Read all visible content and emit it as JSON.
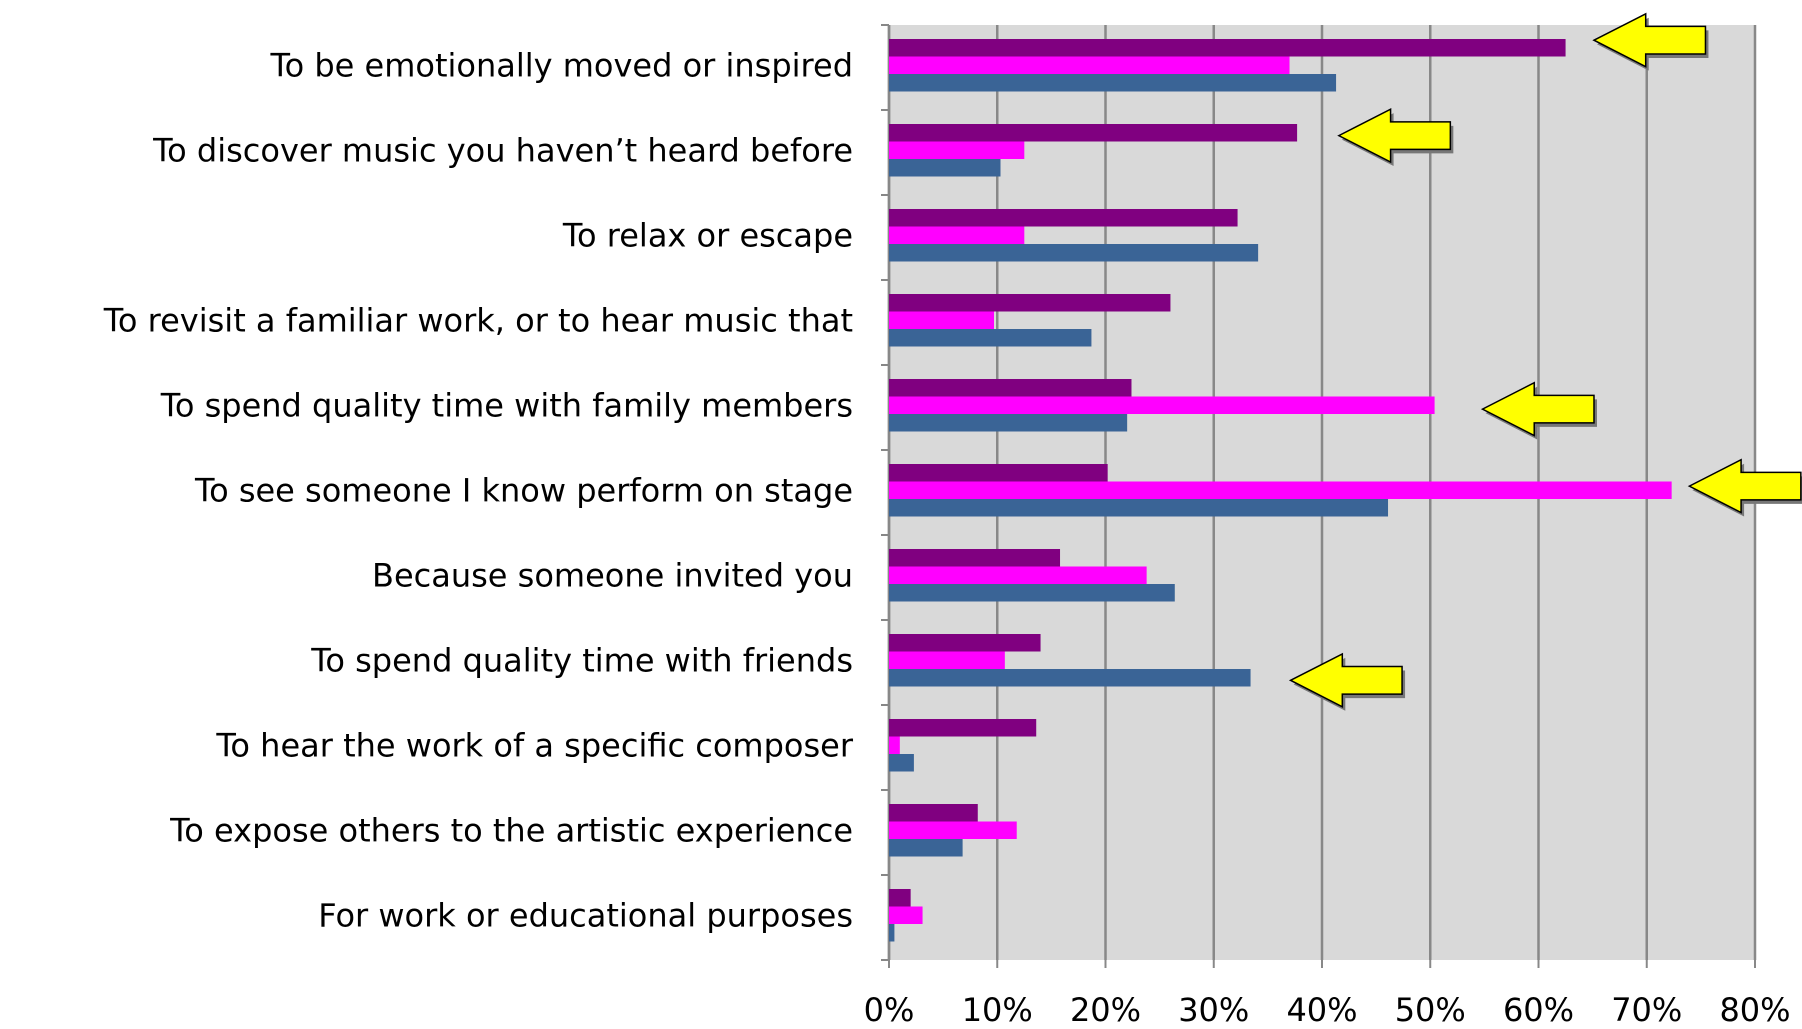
{
  "chart_data": {
    "type": "bar",
    "orientation": "horizontal",
    "categories": [
      "To be emotionally moved or inspired",
      "To discover music you haven’t heard before",
      "To relax or escape",
      "To revisit a familiar work, or to hear music that",
      "To spend quality time with family members",
      "To see someone I know perform on stage",
      "Because someone invited you",
      "To spend quality time with friends",
      "To hear the work of a specific composer",
      "To expose others to the artistic experience",
      "For work or educational purposes"
    ],
    "series": [
      {
        "color": "#800080",
        "values": [
          62.5,
          37.7,
          32.2,
          26,
          22.4,
          20.2,
          15.8,
          14,
          13.6,
          8.2,
          2
        ]
      },
      {
        "color": "#ff00ff",
        "values": [
          37,
          12.5,
          12.5,
          9.7,
          50.4,
          72.3,
          23.8,
          10.7,
          1,
          11.8,
          3.1
        ]
      },
      {
        "color": "#3a6496",
        "values": [
          41.3,
          10.3,
          34.1,
          18.7,
          22,
          46.1,
          26.4,
          33.4,
          2.3,
          6.8,
          0.5
        ]
      }
    ],
    "xlim": [
      0,
      80
    ],
    "xticks": [
      {
        "value": 0,
        "label": "0%"
      },
      {
        "value": 10,
        "label": "10%"
      },
      {
        "value": 20,
        "label": "20%"
      },
      {
        "value": 30,
        "label": "30%"
      },
      {
        "value": 40,
        "label": "40%"
      },
      {
        "value": 50,
        "label": "50%"
      },
      {
        "value": 60,
        "label": "60%"
      },
      {
        "value": 70,
        "label": "70%"
      },
      {
        "value": 80,
        "label": "80%"
      }
    ],
    "grid": true
  }
}
